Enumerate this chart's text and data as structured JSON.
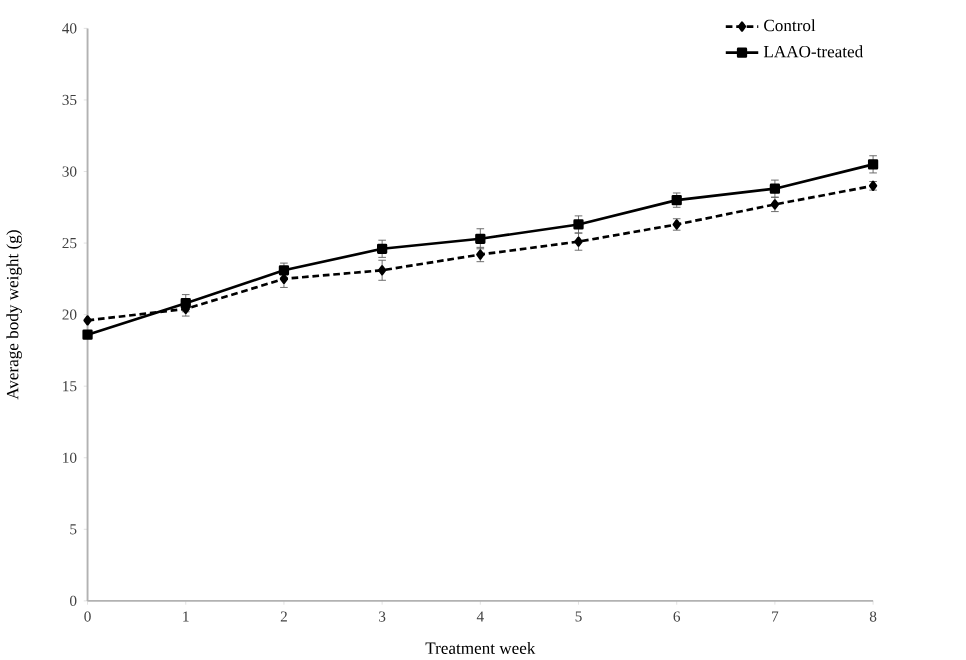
{
  "chart_data": {
    "type": "line",
    "xlabel": "Treatment week",
    "ylabel": "Average body weight (g)",
    "x": [
      0,
      1,
      2,
      3,
      4,
      5,
      6,
      7,
      8
    ],
    "series": [
      {
        "name": "Control",
        "color": "#000000",
        "line_style": "dashed",
        "marker": "diamond",
        "values": [
          19.6,
          20.4,
          22.5,
          23.1,
          24.2,
          25.1,
          26.3,
          27.7,
          29.0
        ],
        "errors": [
          null,
          0.5,
          0.6,
          0.7,
          0.5,
          0.6,
          0.4,
          0.5,
          0.3
        ]
      },
      {
        "name": "LAAO-treated",
        "color": "#000000",
        "line_style": "solid",
        "marker": "square",
        "values": [
          18.6,
          20.8,
          23.1,
          24.6,
          25.3,
          26.3,
          28.0,
          28.8,
          30.5
        ],
        "errors": [
          null,
          0.6,
          0.5,
          0.6,
          0.7,
          0.6,
          0.5,
          0.6,
          0.6
        ]
      }
    ],
    "xlim": [
      0,
      8
    ],
    "xticks": [
      0,
      1,
      2,
      3,
      4,
      5,
      6,
      7,
      8
    ],
    "ylim": [
      0,
      40
    ],
    "yticks": [
      0,
      5,
      10,
      15,
      20,
      25,
      30,
      35,
      40
    ],
    "grid": false,
    "legend": "top right"
  }
}
